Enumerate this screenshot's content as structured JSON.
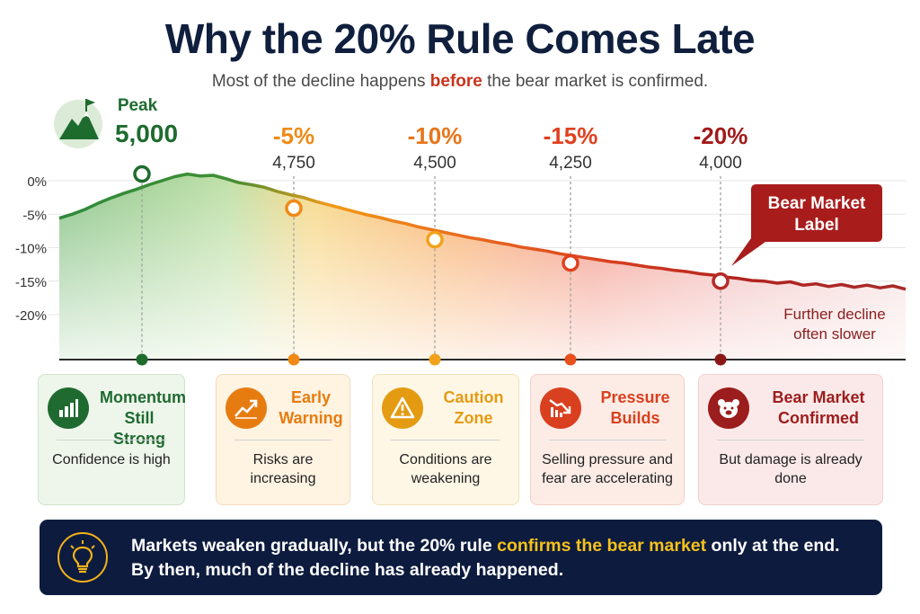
{
  "title": "Why the 20% Rule Comes Late",
  "subtitle": {
    "before_text": "Most of the decline happens ",
    "highlight": "before",
    "after_text": " the bear market is confirmed."
  },
  "chart_data": {
    "type": "area",
    "title": "Why the 20% Rule Comes Late",
    "xlabel": "",
    "ylabel": "",
    "y_ticks": [
      "0%",
      "-5%",
      "-10%",
      "-15%",
      "-20%"
    ],
    "y_tick_values": [
      0,
      -5,
      -10,
      -15,
      -20
    ],
    "ylim": [
      -22,
      2
    ],
    "grid": true,
    "series": [
      {
        "values": [
          -5.6,
          -5.0,
          -4.3,
          -3.4,
          -2.6,
          -1.9,
          -1.3,
          -0.6,
          0.0,
          0.6,
          1.0,
          0.7,
          0.8,
          0.3,
          -0.3,
          -0.6,
          -1.0,
          -1.6,
          -2.1,
          -2.5,
          -3.1,
          -3.6,
          -4.1,
          -4.6,
          -5.1,
          -5.5,
          -6.0,
          -6.4,
          -6.9,
          -7.3,
          -7.7,
          -8.1,
          -8.5,
          -8.8,
          -9.2,
          -9.5,
          -9.9,
          -10.2,
          -10.5,
          -10.9,
          -11.2,
          -11.5,
          -11.8,
          -12.1,
          -12.3,
          -12.6,
          -12.9,
          -13.1,
          -13.4,
          -13.6,
          -13.9,
          -14.1,
          -14.4,
          -14.6,
          -14.9,
          -15.0,
          -15.3,
          -15.1,
          -15.6,
          -15.4,
          -15.8,
          -15.5,
          -15.9,
          -15.6,
          -16.0,
          -15.7,
          -16.2
        ]
      }
    ],
    "milestones": [
      {
        "name": "Peak",
        "label": "5,000",
        "value_pct": 1.0,
        "color": "#1e6b2e",
        "marker_color": "#1e6b2e",
        "dot_color": "#1e6b2e"
      },
      {
        "label": "-5%",
        "sublabel": "4,750",
        "value_pct": -4.1,
        "color": "#ef8a17",
        "marker_color": "#ef8a17",
        "dot_color": "#ef8a17"
      },
      {
        "label": "-10%",
        "sublabel": "4,500",
        "value_pct": -8.8,
        "color": "#e8751a",
        "marker_color": "#f0a21a",
        "dot_color": "#f0a21a"
      },
      {
        "label": "-15%",
        "sublabel": "4,250",
        "value_pct": -12.3,
        "color": "#e0401f",
        "marker_color": "#e0401f",
        "dot_color": "#e8501e"
      },
      {
        "label": "-20%",
        "sublabel": "4,000",
        "value_pct": -15.0,
        "color": "#a01a1a",
        "marker_color": "#b52a25",
        "dot_color": "#8a1616"
      }
    ],
    "annotations": {
      "bear_label": "Bear Market Label",
      "bear_color": "#a81c1c",
      "further_decline": "Further decline often slower",
      "further_color": "#8a2020"
    }
  },
  "cards": [
    {
      "title": "Momentum Still Strong",
      "body": "Confidence is high",
      "icon": "bar-chart-icon",
      "color": "#1f6a30",
      "bg": "#eef6ec",
      "border": "#cfe3cb"
    },
    {
      "title": "Early Warning",
      "body": "Risks are increasing",
      "icon": "trend-arrow-icon",
      "color": "#e67c10",
      "bg": "#fff3e2",
      "border": "#f4dcbc"
    },
    {
      "title": "Caution Zone",
      "body": "Conditions are weakening",
      "icon": "warning-icon",
      "color": "#e49b12",
      "bg": "#fff7e6",
      "border": "#f3e1bb"
    },
    {
      "title": "Pressure Builds",
      "body": "Selling pressure and fear are accelerating",
      "icon": "falling-chart-icon",
      "color": "#d9401f",
      "bg": "#fdece6",
      "border": "#f2d0c4"
    },
    {
      "title": "Bear Market Confirmed",
      "body": "But damage is already done",
      "icon": "bear-icon",
      "color": "#9c1d1d",
      "bg": "#fbe9e9",
      "border": "#efd0d0"
    }
  ],
  "banner": {
    "icon": "lightbulb-icon",
    "line1_before": "Markets weaken gradually, but the 20% rule ",
    "line1_highlight": "confirms the bear market",
    "line1_after": " only at the end.",
    "line2": "By then, much of the decline has already happened."
  }
}
